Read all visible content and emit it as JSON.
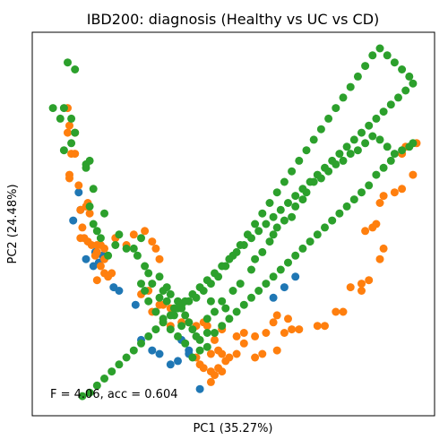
{
  "chart_data": {
    "type": "scatter",
    "title": "IBD200: diagnosis (Healthy vs UC vs CD)",
    "xlabel": "PC1 (35.27%)",
    "ylabel": "PC2 (24.48%)",
    "xlim": [
      0,
      100
    ],
    "ylim": [
      0,
      100
    ],
    "grid": false,
    "ticks": false,
    "annotation": "F = 4.06, acc = 0.604",
    "colors": {
      "blue": "#1f77b4",
      "orange": "#ff7f0e",
      "green": "#2ca02c"
    },
    "series": [
      {
        "color": "#1f77b4",
        "points": [
          [
            8,
            59
          ],
          [
            8.5,
            54
          ],
          [
            6.5,
            51
          ],
          [
            10,
            40
          ],
          [
            12,
            38
          ],
          [
            13.5,
            39
          ],
          [
            14.5,
            41
          ],
          [
            12.5,
            42
          ],
          [
            17.5,
            32
          ],
          [
            19,
            31
          ],
          [
            23.5,
            27
          ],
          [
            25,
            17
          ],
          [
            28,
            14
          ],
          [
            30,
            13
          ],
          [
            33,
            10
          ],
          [
            35,
            11
          ],
          [
            36,
            17
          ],
          [
            38,
            14
          ],
          [
            38,
            13
          ],
          [
            41,
            3
          ],
          [
            61,
            29
          ],
          [
            64,
            32
          ],
          [
            67,
            35
          ]
        ]
      },
      {
        "color": "#ff7f0e",
        "points": [
          [
            5,
            83
          ],
          [
            5.5,
            78
          ],
          [
            5,
            76
          ],
          [
            7,
            76
          ],
          [
            6,
            70
          ],
          [
            7,
            70
          ],
          [
            5.5,
            64
          ],
          [
            5.5,
            63
          ],
          [
            8,
            61
          ],
          [
            10.5,
            56
          ],
          [
            10,
            55
          ],
          [
            8.5,
            54
          ],
          [
            11,
            53
          ],
          [
            9,
            49
          ],
          [
            8.5,
            46
          ],
          [
            9.5,
            46
          ],
          [
            10.5,
            45
          ],
          [
            11.5,
            44
          ],
          [
            13,
            44
          ],
          [
            14,
            44
          ],
          [
            13,
            42
          ],
          [
            12.5,
            41
          ],
          [
            15,
            40
          ],
          [
            14,
            38
          ],
          [
            15,
            36
          ],
          [
            13,
            34
          ],
          [
            16,
            35
          ],
          [
            17,
            36
          ],
          [
            15,
            43
          ],
          [
            18,
            46
          ],
          [
            21,
            44
          ],
          [
            23,
            47
          ],
          [
            26,
            48
          ],
          [
            28,
            45
          ],
          [
            29,
            43
          ],
          [
            30,
            40
          ],
          [
            25,
            30
          ],
          [
            27,
            31
          ],
          [
            30,
            27
          ],
          [
            31,
            27
          ],
          [
            33,
            26
          ],
          [
            28,
            25
          ],
          [
            29,
            25
          ],
          [
            31,
            22
          ],
          [
            33,
            21
          ],
          [
            36,
            22
          ],
          [
            38,
            22
          ],
          [
            40,
            21
          ],
          [
            42,
            22
          ],
          [
            43,
            21
          ],
          [
            47,
            20
          ],
          [
            51,
            18
          ],
          [
            53,
            19
          ],
          [
            56,
            18
          ],
          [
            59,
            19
          ],
          [
            61,
            22
          ],
          [
            62,
            24
          ],
          [
            65,
            23
          ],
          [
            64,
            19
          ],
          [
            66,
            20
          ],
          [
            68,
            20
          ],
          [
            73,
            21
          ],
          [
            75,
            21
          ],
          [
            78,
            25
          ],
          [
            80,
            25
          ],
          [
            82,
            32
          ],
          [
            85,
            31
          ],
          [
            85,
            33
          ],
          [
            87,
            34
          ],
          [
            90,
            40
          ],
          [
            91,
            43
          ],
          [
            86,
            48
          ],
          [
            88,
            49
          ],
          [
            89,
            50
          ],
          [
            90,
            56
          ],
          [
            91,
            58
          ],
          [
            94,
            59
          ],
          [
            96,
            60
          ],
          [
            99,
            64
          ],
          [
            96,
            70
          ],
          [
            97,
            72
          ],
          [
            100,
            73
          ],
          [
            44,
            5
          ],
          [
            45,
            7
          ],
          [
            46,
            9
          ],
          [
            48,
            11
          ],
          [
            49,
            12
          ],
          [
            51,
            13
          ],
          [
            53,
            16
          ],
          [
            46,
            14
          ],
          [
            47,
            13
          ],
          [
            56,
            12
          ],
          [
            58,
            13
          ],
          [
            62,
            14
          ],
          [
            40,
            12
          ],
          [
            41,
            10
          ],
          [
            42,
            9
          ],
          [
            44,
            8
          ],
          [
            47,
            8
          ],
          [
            44,
            13
          ],
          [
            45,
            17
          ]
        ]
      },
      {
        "color": "#2ca02c",
        "points": [
          [
            5,
            96
          ],
          [
            7,
            94
          ],
          [
            1,
            83
          ],
          [
            4,
            83
          ],
          [
            3,
            80
          ],
          [
            6,
            80
          ],
          [
            7,
            76
          ],
          [
            6,
            73
          ],
          [
            4,
            71
          ],
          [
            10,
            67
          ],
          [
            11,
            68
          ],
          [
            10,
            66
          ],
          [
            12,
            60
          ],
          [
            11,
            55
          ],
          [
            12,
            50
          ],
          [
            15,
            53
          ],
          [
            13,
            48
          ],
          [
            14,
            46
          ],
          [
            16,
            41
          ],
          [
            18,
            44
          ],
          [
            19,
            47
          ],
          [
            21,
            43
          ],
          [
            23,
            43
          ],
          [
            25,
            46
          ],
          [
            24,
            41
          ],
          [
            26,
            38
          ],
          [
            27,
            36
          ],
          [
            25,
            33
          ],
          [
            26,
            31
          ],
          [
            28,
            33
          ],
          [
            30,
            35
          ],
          [
            31,
            31
          ],
          [
            32,
            32
          ],
          [
            33,
            30
          ],
          [
            35,
            28
          ],
          [
            36,
            27
          ],
          [
            34,
            26
          ],
          [
            37,
            24
          ],
          [
            38,
            22
          ],
          [
            36,
            21
          ],
          [
            39,
            20
          ],
          [
            40,
            18
          ],
          [
            41,
            17
          ],
          [
            43,
            19
          ],
          [
            43,
            23
          ],
          [
            44,
            28
          ],
          [
            45,
            25
          ],
          [
            47,
            28
          ],
          [
            48,
            26
          ],
          [
            50,
            31
          ],
          [
            52,
            33
          ],
          [
            55,
            37
          ],
          [
            56,
            40
          ],
          [
            58,
            42
          ],
          [
            60,
            45
          ],
          [
            61,
            47
          ],
          [
            62,
            49
          ],
          [
            64,
            51
          ],
          [
            66,
            52
          ],
          [
            67,
            55
          ],
          [
            69,
            57
          ],
          [
            70,
            59
          ],
          [
            72,
            62
          ],
          [
            74,
            63
          ],
          [
            76,
            65
          ],
          [
            78,
            67
          ],
          [
            80,
            68
          ],
          [
            82,
            70
          ],
          [
            84,
            71
          ],
          [
            86,
            73
          ],
          [
            88,
            75
          ],
          [
            90,
            74
          ],
          [
            92,
            72
          ],
          [
            94,
            70
          ],
          [
            96,
            71
          ],
          [
            98,
            72
          ],
          [
            99,
            73
          ],
          [
            93,
            68
          ],
          [
            91,
            66
          ],
          [
            89,
            64
          ],
          [
            87,
            61
          ],
          [
            85,
            59
          ],
          [
            83,
            57
          ],
          [
            81,
            55
          ],
          [
            79,
            53
          ],
          [
            77,
            51
          ],
          [
            75,
            49
          ],
          [
            73,
            47
          ],
          [
            71,
            45
          ],
          [
            69,
            43
          ],
          [
            67,
            41
          ],
          [
            65,
            39
          ],
          [
            63,
            37
          ],
          [
            61,
            35
          ],
          [
            59,
            33
          ],
          [
            57,
            31
          ],
          [
            55,
            29
          ],
          [
            53,
            27
          ],
          [
            51,
            25
          ],
          [
            49,
            23
          ],
          [
            47,
            21
          ],
          [
            45,
            19
          ],
          [
            43,
            15
          ],
          [
            41,
            14
          ],
          [
            39,
            12
          ],
          [
            37,
            16
          ],
          [
            35,
            18
          ],
          [
            33,
            20
          ],
          [
            31,
            23
          ],
          [
            29,
            25
          ],
          [
            27,
            28
          ],
          [
            30,
            29
          ],
          [
            32,
            28
          ],
          [
            34,
            24
          ],
          [
            36,
            26
          ],
          [
            38,
            28
          ],
          [
            40,
            29
          ],
          [
            42,
            31
          ],
          [
            44,
            33
          ],
          [
            46,
            35
          ],
          [
            48,
            38
          ],
          [
            50,
            41
          ],
          [
            52,
            44
          ],
          [
            54,
            47
          ],
          [
            56,
            50
          ],
          [
            58,
            53
          ],
          [
            60,
            56
          ],
          [
            62,
            59
          ],
          [
            64,
            62
          ],
          [
            66,
            65
          ],
          [
            68,
            68
          ],
          [
            70,
            71
          ],
          [
            72,
            74
          ],
          [
            74,
            77
          ],
          [
            76,
            80
          ],
          [
            78,
            83
          ],
          [
            80,
            86
          ],
          [
            82,
            89
          ],
          [
            84,
            92
          ],
          [
            86,
            95
          ],
          [
            88,
            98
          ],
          [
            90,
            100
          ],
          [
            92,
            98
          ],
          [
            94,
            96
          ],
          [
            96,
            94
          ],
          [
            98,
            92
          ],
          [
            99,
            90
          ],
          [
            97,
            88
          ],
          [
            95,
            86
          ],
          [
            93,
            84
          ],
          [
            91,
            82
          ],
          [
            89,
            80
          ],
          [
            87,
            78
          ],
          [
            85,
            76
          ],
          [
            83,
            74
          ],
          [
            81,
            72
          ],
          [
            79,
            70
          ],
          [
            77,
            68
          ],
          [
            75,
            66
          ],
          [
            73,
            64
          ],
          [
            71,
            62
          ],
          [
            69,
            60
          ],
          [
            67,
            58
          ],
          [
            65,
            56
          ],
          [
            63,
            54
          ],
          [
            61,
            52
          ],
          [
            59,
            50
          ],
          [
            57,
            48
          ],
          [
            55,
            46
          ],
          [
            53,
            44
          ],
          [
            51,
            42
          ],
          [
            49,
            40
          ],
          [
            47,
            38
          ],
          [
            45,
            36
          ],
          [
            43,
            34
          ],
          [
            41,
            32
          ],
          [
            39,
            30
          ],
          [
            37,
            28
          ],
          [
            35,
            26
          ],
          [
            33,
            24
          ],
          [
            31,
            22
          ],
          [
            29,
            20
          ],
          [
            27,
            18
          ],
          [
            25,
            16
          ],
          [
            23,
            14
          ],
          [
            21,
            12
          ],
          [
            19,
            10
          ],
          [
            17,
            8
          ],
          [
            15,
            6
          ],
          [
            13,
            4
          ],
          [
            11,
            2
          ],
          [
            9,
            1
          ]
        ]
      }
    ]
  }
}
